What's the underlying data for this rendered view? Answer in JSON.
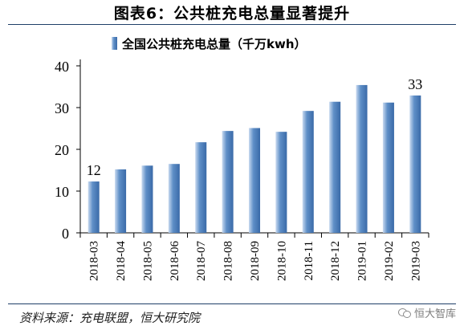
{
  "figure_title": "图表6：公共桩充电总量显著提升",
  "source": "资料来源：充电联盟，恒大研究院",
  "watermark": "恒大智库",
  "watermark_icon": "wechat-icon",
  "colors": {
    "bar_light": "#c9daf0",
    "bar_mid": "#5f8fc7",
    "bar_dark": "#3a6aa8",
    "rule": "#1f3f68"
  },
  "chart_data": {
    "type": "bar",
    "legend": {
      "label": "全国公共桩充电总量（千万kwh）",
      "position": "top-center"
    },
    "categories": [
      "2018-03",
      "2018-04",
      "2018-05",
      "2018-06",
      "2018-07",
      "2018-08",
      "2018-09",
      "2018-10",
      "2018-11",
      "2018-12",
      "2019-01",
      "2019-02",
      "2019-03"
    ],
    "values": [
      12.3,
      15.2,
      16.1,
      16.5,
      21.7,
      24.4,
      25.1,
      24.2,
      29.2,
      31.4,
      35.4,
      31.2,
      32.9
    ],
    "data_labels": [
      {
        "index": 0,
        "text": "12"
      },
      {
        "index": 12,
        "text": "33"
      }
    ],
    "ylim": [
      0,
      40
    ],
    "yticks": [
      0,
      10,
      20,
      30,
      40
    ],
    "grid": false
  }
}
